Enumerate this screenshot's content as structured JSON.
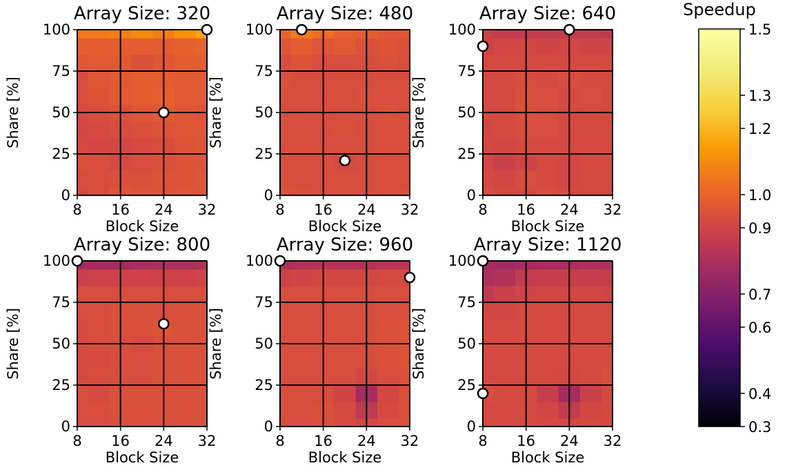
{
  "chart_data": {
    "type": "heatmap",
    "xlabel": "Block Size",
    "ylabel": "Share [%]",
    "x_ticks": [
      "8",
      "16",
      "24",
      "32"
    ],
    "y_ticks": [
      "0",
      "25",
      "50",
      "75",
      "100"
    ],
    "xlim": [
      8,
      32
    ],
    "ylim": [
      0,
      100
    ],
    "grid": true,
    "colormap": "inferno",
    "grid_x": [
      8,
      12,
      16,
      20,
      24,
      28,
      32
    ],
    "grid_y": [
      0,
      10,
      20,
      30,
      40,
      50,
      60,
      70,
      80,
      90,
      100
    ],
    "colorbar": {
      "title": "Speedup",
      "range": [
        0.3,
        1.5
      ],
      "ticks": [
        "0.3",
        "0.4",
        "0.6",
        "0.7",
        "0.9",
        "1.0",
        "1.2",
        "1.3",
        "1.5"
      ],
      "tick_values": [
        0.3,
        0.4,
        0.6,
        0.7,
        0.9,
        1.0,
        1.2,
        1.3,
        1.5
      ]
    },
    "panels": [
      {
        "title": "Array Size: 320",
        "marker": {
          "block_size": 24,
          "share": 50,
          "fill": "#ffffff"
        },
        "extra_markers": [
          {
            "block_size": 32,
            "share": 100
          }
        ],
        "values": [
          [
            0.92,
            0.93,
            0.96,
            0.95,
            0.95,
            0.96,
            0.96
          ],
          [
            0.93,
            0.93,
            0.94,
            0.94,
            0.95,
            0.95,
            0.96
          ],
          [
            0.94,
            0.93,
            0.92,
            0.93,
            0.94,
            0.95,
            0.95
          ],
          [
            0.92,
            0.91,
            0.91,
            0.92,
            0.93,
            0.95,
            0.96
          ],
          [
            0.91,
            0.92,
            0.93,
            0.94,
            0.95,
            0.96,
            0.96
          ],
          [
            0.92,
            0.93,
            0.94,
            0.96,
            0.97,
            0.96,
            0.95
          ],
          [
            0.93,
            0.95,
            0.97,
            0.98,
            0.99,
            0.97,
            0.97
          ],
          [
            0.93,
            0.96,
            0.97,
            0.98,
            0.98,
            0.97,
            0.97
          ],
          [
            0.96,
            0.97,
            0.97,
            0.94,
            0.96,
            0.98,
            0.98
          ],
          [
            0.98,
            0.98,
            0.98,
            0.98,
            0.98,
            0.99,
            1.0
          ],
          [
            1.06,
            1.06,
            1.07,
            1.1,
            1.07,
            1.12,
            1.16
          ]
        ]
      },
      {
        "title": "Array Size: 480",
        "marker": {
          "block_size": 20,
          "share": 21,
          "fill": "#ffffff"
        },
        "extra_markers": [
          {
            "block_size": 12,
            "share": 100
          }
        ],
        "values": [
          [
            0.95,
            0.94,
            0.93,
            0.93,
            0.93,
            0.93,
            0.94
          ],
          [
            0.93,
            0.93,
            0.93,
            0.93,
            0.93,
            0.93,
            0.93
          ],
          [
            0.93,
            0.93,
            0.93,
            0.92,
            0.93,
            0.93,
            0.93
          ],
          [
            0.93,
            0.93,
            0.93,
            0.93,
            0.93,
            0.93,
            0.93
          ],
          [
            0.93,
            0.93,
            0.93,
            0.94,
            0.93,
            0.93,
            0.93
          ],
          [
            0.93,
            0.93,
            0.93,
            0.93,
            0.93,
            0.94,
            0.93
          ],
          [
            0.93,
            0.93,
            0.93,
            0.93,
            0.94,
            0.93,
            0.93
          ],
          [
            0.94,
            0.93,
            0.93,
            0.93,
            0.93,
            0.93,
            0.93
          ],
          [
            0.93,
            0.95,
            0.93,
            0.93,
            0.93,
            0.94,
            0.93
          ],
          [
            0.96,
            0.98,
            0.96,
            0.97,
            0.94,
            0.95,
            0.94
          ],
          [
            1.0,
            1.06,
            1.03,
            0.99,
            0.98,
            0.96,
            0.96
          ]
        ]
      },
      {
        "title": "Array Size: 640",
        "marker": {
          "block_size": 24,
          "share": 100,
          "fill": "#ffffff"
        },
        "extra_markers": [
          {
            "block_size": 8,
            "share": 90
          }
        ],
        "values": [
          [
            0.93,
            0.92,
            0.92,
            0.93,
            0.92,
            0.92,
            0.92
          ],
          [
            0.92,
            0.91,
            0.93,
            0.92,
            0.91,
            0.92,
            0.92
          ],
          [
            0.91,
            0.88,
            0.9,
            0.92,
            0.91,
            0.92,
            0.92
          ],
          [
            0.92,
            0.91,
            0.92,
            0.92,
            0.92,
            0.92,
            0.92
          ],
          [
            0.91,
            0.92,
            0.93,
            0.93,
            0.92,
            0.92,
            0.92
          ],
          [
            0.92,
            0.92,
            0.94,
            0.93,
            0.92,
            0.92,
            0.92
          ],
          [
            0.92,
            0.92,
            0.94,
            0.93,
            0.92,
            0.93,
            0.92
          ],
          [
            0.92,
            0.92,
            0.93,
            0.92,
            0.93,
            0.92,
            0.92
          ],
          [
            0.92,
            0.92,
            0.92,
            0.92,
            0.92,
            0.92,
            0.92
          ],
          [
            0.89,
            0.91,
            0.91,
            0.9,
            0.91,
            0.9,
            0.9
          ],
          [
            0.88,
            0.86,
            0.86,
            0.86,
            0.86,
            0.86,
            0.85
          ]
        ]
      },
      {
        "title": "Array Size: 800",
        "marker": {
          "block_size": 24,
          "share": 62,
          "fill": "#ffffff"
        },
        "extra_markers": [
          {
            "block_size": 8,
            "share": 100
          }
        ],
        "values": [
          [
            0.93,
            0.93,
            0.94,
            0.94,
            0.94,
            0.94,
            0.94
          ],
          [
            0.93,
            0.93,
            0.94,
            0.94,
            0.94,
            0.94,
            0.94
          ],
          [
            0.93,
            0.92,
            0.94,
            0.94,
            0.94,
            0.94,
            0.94
          ],
          [
            0.92,
            0.93,
            0.93,
            0.93,
            0.94,
            0.94,
            0.94
          ],
          [
            0.92,
            0.92,
            0.93,
            0.93,
            0.94,
            0.94,
            0.94
          ],
          [
            0.92,
            0.93,
            0.93,
            0.92,
            0.94,
            0.94,
            0.94
          ],
          [
            0.92,
            0.93,
            0.94,
            0.94,
            0.95,
            0.94,
            0.94
          ],
          [
            0.93,
            0.93,
            0.94,
            0.94,
            0.93,
            0.94,
            0.94
          ],
          [
            0.93,
            0.93,
            0.93,
            0.93,
            0.93,
            0.93,
            0.93
          ],
          [
            0.88,
            0.89,
            0.89,
            0.89,
            0.89,
            0.89,
            0.9
          ],
          [
            0.78,
            0.78,
            0.78,
            0.79,
            0.8,
            0.8,
            0.81
          ]
        ]
      },
      {
        "title": "Array Size: 960",
        "marker": {
          "block_size": 32,
          "share": 90,
          "fill": "#ffffff"
        },
        "extra_markers": [
          {
            "block_size": 8,
            "share": 100
          }
        ],
        "values": [
          [
            0.93,
            0.93,
            0.94,
            0.92,
            0.91,
            0.93,
            0.94
          ],
          [
            0.93,
            0.93,
            0.94,
            0.92,
            0.85,
            0.92,
            0.94
          ],
          [
            0.93,
            0.93,
            0.93,
            0.9,
            0.78,
            0.91,
            0.94
          ],
          [
            0.93,
            0.93,
            0.93,
            0.93,
            0.91,
            0.93,
            0.94
          ],
          [
            0.93,
            0.93,
            0.93,
            0.93,
            0.93,
            0.94,
            0.95
          ],
          [
            0.93,
            0.93,
            0.93,
            0.93,
            0.93,
            0.94,
            0.95
          ],
          [
            0.93,
            0.93,
            0.93,
            0.93,
            0.93,
            0.94,
            0.95
          ],
          [
            0.93,
            0.93,
            0.93,
            0.93,
            0.93,
            0.93,
            0.93
          ],
          [
            0.93,
            0.93,
            0.93,
            0.93,
            0.93,
            0.93,
            0.93
          ],
          [
            0.89,
            0.9,
            0.91,
            0.91,
            0.91,
            0.92,
            0.92
          ],
          [
            0.8,
            0.81,
            0.82,
            0.82,
            0.82,
            0.83,
            0.83
          ]
        ]
      },
      {
        "title": "Array Size: 1120",
        "marker": {
          "block_size": 8,
          "share": 20,
          "fill": "#ffffff"
        },
        "extra_markers": [
          {
            "block_size": 8,
            "share": 100
          }
        ],
        "values": [
          [
            0.92,
            0.92,
            0.92,
            0.92,
            0.92,
            0.92,
            0.92
          ],
          [
            0.92,
            0.92,
            0.92,
            0.91,
            0.86,
            0.91,
            0.92
          ],
          [
            0.93,
            0.92,
            0.92,
            0.87,
            0.78,
            0.88,
            0.92
          ],
          [
            0.92,
            0.92,
            0.92,
            0.92,
            0.91,
            0.92,
            0.93
          ],
          [
            0.92,
            0.92,
            0.92,
            0.92,
            0.92,
            0.92,
            0.92
          ],
          [
            0.92,
            0.92,
            0.92,
            0.92,
            0.92,
            0.92,
            0.92
          ],
          [
            0.92,
            0.92,
            0.92,
            0.92,
            0.92,
            0.92,
            0.92
          ],
          [
            0.91,
            0.91,
            0.92,
            0.92,
            0.92,
            0.92,
            0.92
          ],
          [
            0.85,
            0.88,
            0.9,
            0.91,
            0.91,
            0.91,
            0.9
          ],
          [
            0.8,
            0.81,
            0.86,
            0.87,
            0.87,
            0.87,
            0.87
          ],
          [
            0.77,
            0.77,
            0.78,
            0.79,
            0.79,
            0.8,
            0.81
          ]
        ]
      }
    ]
  }
}
